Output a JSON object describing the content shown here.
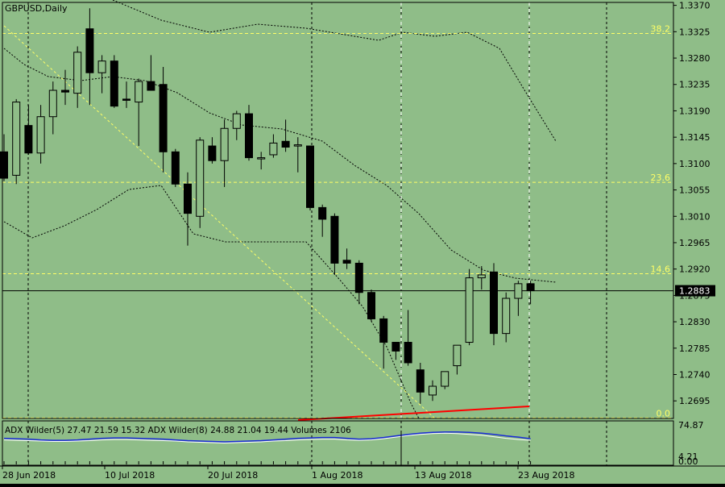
{
  "chart_title": "GBPUSD,Daily",
  "indicator_header": "ADX Wilder(5) 27.47 21.59 15.32 ADX Wilder(8) 24.88 21.04 19.44 Volumes 2106",
  "price_axis_labels": [
    "1.3370",
    "1.3325",
    "1.3280",
    "1.3235",
    "1.3190",
    "1.3145",
    "1.3100",
    "1.3055",
    "1.3010",
    "1.2965",
    "1.2920",
    "1.2875",
    "1.2830",
    "1.2785",
    "1.2740",
    "1.2695"
  ],
  "current_price_label": "1.2883",
  "fib_labels": [
    "38.2",
    "23.6",
    "14.6",
    "0.0"
  ],
  "indicator_axis_labels": [
    "74.87",
    "4.21",
    "0.00"
  ],
  "date_labels": [
    "28 Jun 2018",
    "10 Jul 2018",
    "20 Jul 2018",
    "1 Aug 2018",
    "13 Aug 2018",
    "23 Aug 2018"
  ],
  "colors": {
    "background": "#8fbd88",
    "bull_candle": "#8fbd88",
    "bear_candle": "#000000",
    "fib_line": "#ffff66",
    "adx_line": "#1a2bd6",
    "adx_line2": "#ffffff",
    "trend_line": "#ff0000"
  },
  "chart_data": {
    "type": "candlestick",
    "symbol": "GBPUSD",
    "timeframe": "Daily",
    "ylim": [
      1.2665,
      1.3375
    ],
    "current_price": 1.2883,
    "fib_levels": [
      {
        "label": "38.2",
        "price": 1.3322
      },
      {
        "label": "23.6",
        "price": 1.3068
      },
      {
        "label": "14.6",
        "price": 1.2912
      },
      {
        "label": "0.0",
        "price": 1.2666
      }
    ],
    "candles": [
      {
        "o": 1.312,
        "h": 1.315,
        "l": 1.307,
        "c": 1.3075
      },
      {
        "o": 1.308,
        "h": 1.321,
        "l": 1.3065,
        "c": 1.3205
      },
      {
        "o": 1.3165,
        "h": 1.32,
        "l": 1.3115,
        "c": 1.3118
      },
      {
        "o": 1.3118,
        "h": 1.32,
        "l": 1.31,
        "c": 1.318
      },
      {
        "o": 1.318,
        "h": 1.324,
        "l": 1.315,
        "c": 1.3225
      },
      {
        "o": 1.3225,
        "h": 1.326,
        "l": 1.32,
        "c": 1.3222
      },
      {
        "o": 1.322,
        "h": 1.33,
        "l": 1.3195,
        "c": 1.329
      },
      {
        "o": 1.333,
        "h": 1.3365,
        "l": 1.32,
        "c": 1.3255
      },
      {
        "o": 1.3255,
        "h": 1.3285,
        "l": 1.322,
        "c": 1.3275
      },
      {
        "o": 1.3275,
        "h": 1.3285,
        "l": 1.3195,
        "c": 1.3198
      },
      {
        "o": 1.321,
        "h": 1.324,
        "l": 1.3195,
        "c": 1.3208
      },
      {
        "o": 1.3205,
        "h": 1.3245,
        "l": 1.313,
        "c": 1.324
      },
      {
        "o": 1.324,
        "h": 1.3285,
        "l": 1.3225,
        "c": 1.3225
      },
      {
        "o": 1.3235,
        "h": 1.3265,
        "l": 1.3085,
        "c": 1.312
      },
      {
        "o": 1.312,
        "h": 1.3125,
        "l": 1.306,
        "c": 1.3065
      },
      {
        "o": 1.3065,
        "h": 1.3085,
        "l": 1.296,
        "c": 1.3015
      },
      {
        "o": 1.301,
        "h": 1.3145,
        "l": 1.299,
        "c": 1.314
      },
      {
        "o": 1.313,
        "h": 1.3145,
        "l": 1.31,
        "c": 1.3105
      },
      {
        "o": 1.3105,
        "h": 1.3175,
        "l": 1.306,
        "c": 1.316
      },
      {
        "o": 1.316,
        "h": 1.319,
        "l": 1.314,
        "c": 1.3185
      },
      {
        "o": 1.3185,
        "h": 1.32,
        "l": 1.3105,
        "c": 1.311
      },
      {
        "o": 1.311,
        "h": 1.312,
        "l": 1.309,
        "c": 1.311
      },
      {
        "o": 1.3115,
        "h": 1.315,
        "l": 1.311,
        "c": 1.3135
      },
      {
        "o": 1.3138,
        "h": 1.3175,
        "l": 1.312,
        "c": 1.3128
      },
      {
        "o": 1.313,
        "h": 1.3145,
        "l": 1.3085,
        "c": 1.3132
      },
      {
        "o": 1.313,
        "h": 1.313,
        "l": 1.302,
        "c": 1.3025
      },
      {
        "o": 1.3025,
        "h": 1.303,
        "l": 1.2975,
        "c": 1.3005
      },
      {
        "o": 1.301,
        "h": 1.3015,
        "l": 1.291,
        "c": 1.293
      },
      {
        "o": 1.2935,
        "h": 1.2955,
        "l": 1.292,
        "c": 1.293
      },
      {
        "o": 1.293,
        "h": 1.2935,
        "l": 1.286,
        "c": 1.288
      },
      {
        "o": 1.288,
        "h": 1.2885,
        "l": 1.283,
        "c": 1.2835
      },
      {
        "o": 1.2835,
        "h": 1.284,
        "l": 1.275,
        "c": 1.2795
      },
      {
        "o": 1.2795,
        "h": 1.2795,
        "l": 1.2765,
        "c": 1.278
      },
      {
        "o": 1.2795,
        "h": 1.285,
        "l": 1.2755,
        "c": 1.276
      },
      {
        "o": 1.2748,
        "h": 1.276,
        "l": 1.269,
        "c": 1.271
      },
      {
        "o": 1.2705,
        "h": 1.273,
        "l": 1.2695,
        "c": 1.272
      },
      {
        "o": 1.272,
        "h": 1.274,
        "l": 1.2715,
        "c": 1.2745
      },
      {
        "o": 1.2755,
        "h": 1.279,
        "l": 1.274,
        "c": 1.279
      },
      {
        "o": 1.2795,
        "h": 1.292,
        "l": 1.279,
        "c": 1.2905
      },
      {
        "o": 1.2905,
        "h": 1.2925,
        "l": 1.2885,
        "c": 1.291
      },
      {
        "o": 1.2915,
        "h": 1.293,
        "l": 1.279,
        "c": 1.281
      },
      {
        "o": 1.281,
        "h": 1.288,
        "l": 1.2795,
        "c": 1.287
      },
      {
        "o": 1.287,
        "h": 1.29,
        "l": 1.284,
        "c": 1.2895
      },
      {
        "o": 1.2895,
        "h": 1.29,
        "l": 1.286,
        "c": 1.2883
      }
    ],
    "adx_series_1": [
      62,
      61,
      60,
      58,
      57,
      57,
      58,
      60,
      62,
      63,
      63,
      62,
      61,
      60,
      58,
      56,
      55,
      54,
      53,
      54,
      55,
      56,
      58,
      60,
      62,
      63,
      64,
      64,
      62,
      60,
      61,
      64,
      68,
      72,
      75,
      77,
      78,
      78,
      77,
      75,
      72,
      68,
      65,
      61
    ],
    "adx_series_2": [
      58,
      57,
      56,
      55,
      54,
      54,
      55,
      56,
      58,
      59,
      59,
      58,
      57,
      56,
      55,
      53,
      52,
      51,
      50,
      51,
      52,
      53,
      55,
      56,
      58,
      59,
      60,
      60,
      58,
      57,
      58,
      61,
      65,
      69,
      72,
      74,
      75,
      74,
      72,
      70,
      66,
      62,
      59,
      57
    ]
  }
}
